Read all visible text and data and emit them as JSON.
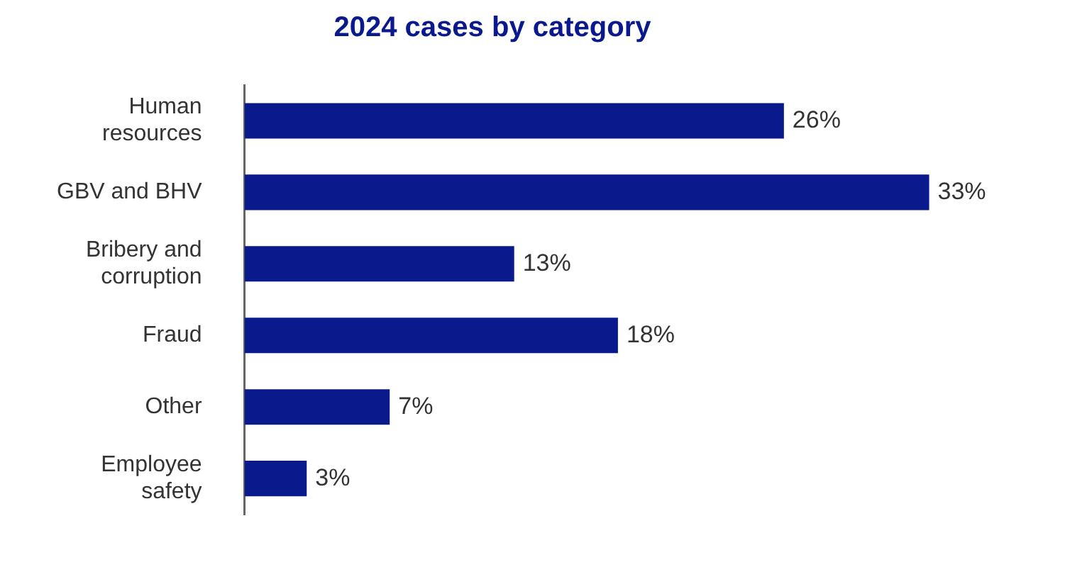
{
  "chart_data": {
    "type": "bar",
    "orientation": "horizontal",
    "title": "2024 cases by category",
    "categories": [
      "Human resources",
      "GBV and BHV",
      "Bribery and corruption",
      "Fraud",
      "Other",
      "Employee safety"
    ],
    "values": [
      26,
      33,
      13,
      18,
      7,
      3
    ],
    "value_labels": [
      "26%",
      "33%",
      "13%",
      "18%",
      "7%",
      "3%"
    ],
    "color": "#0a1a8c",
    "legend": false,
    "tick_labels": "y"
  }
}
